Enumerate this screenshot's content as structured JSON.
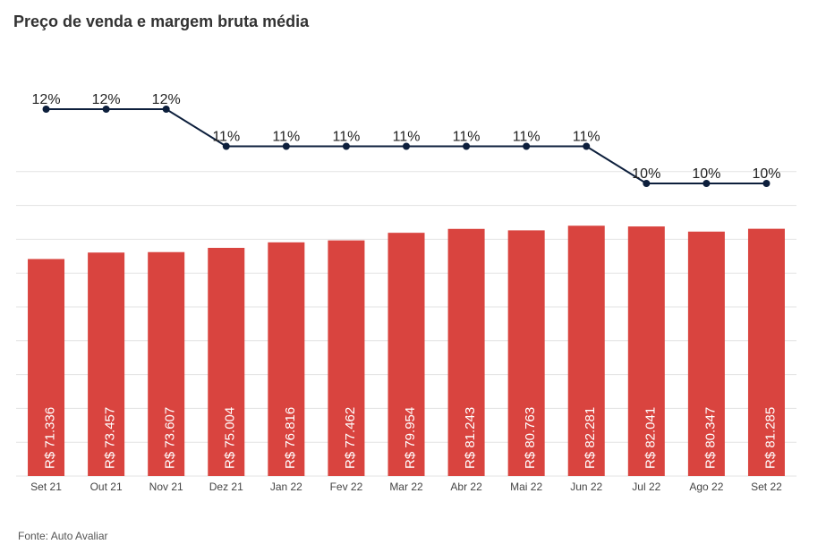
{
  "title": "Preço de venda e margem bruta média",
  "source": "Fonte: Auto Avaliar",
  "chart_data": {
    "type": "bar",
    "categories": [
      "Set 21",
      "Out 21",
      "Nov 21",
      "Dez 21",
      "Jan 22",
      "Fev 22",
      "Mar 22",
      "Abr 22",
      "Mai 22",
      "Jun 22",
      "Jul 22",
      "Ago 22",
      "Set 22"
    ],
    "series": [
      {
        "type": "bar",
        "values": [
          71336,
          73457,
          73607,
          75004,
          76816,
          77462,
          79954,
          81243,
          80763,
          82281,
          82041,
          80347,
          81285
        ],
        "labels": [
          "R$ 71.336",
          "R$ 73.457",
          "R$ 73.607",
          "R$ 75.004",
          "R$ 76.816",
          "R$ 77.462",
          "R$ 79.954",
          "R$ 81.243",
          "R$ 80.763",
          "R$ 82.281",
          "R$ 82.041",
          "R$ 80.347",
          "R$ 81.285"
        ]
      },
      {
        "type": "line",
        "values": [
          12,
          12,
          12,
          11,
          11,
          11,
          11,
          11,
          11,
          11,
          10,
          10,
          10
        ],
        "labels": [
          "12%",
          "12%",
          "12%",
          "11%",
          "11%",
          "11%",
          "11%",
          "11%",
          "11%",
          "11%",
          "10%",
          "10%",
          "10%"
        ]
      }
    ],
    "ylim": [
      0,
      100000
    ],
    "grid": true,
    "colors": {
      "bar": "#d9443f",
      "line": "#0d1f3c",
      "grid": "#e3e3e3",
      "bar_label": "#ffffff"
    }
  }
}
